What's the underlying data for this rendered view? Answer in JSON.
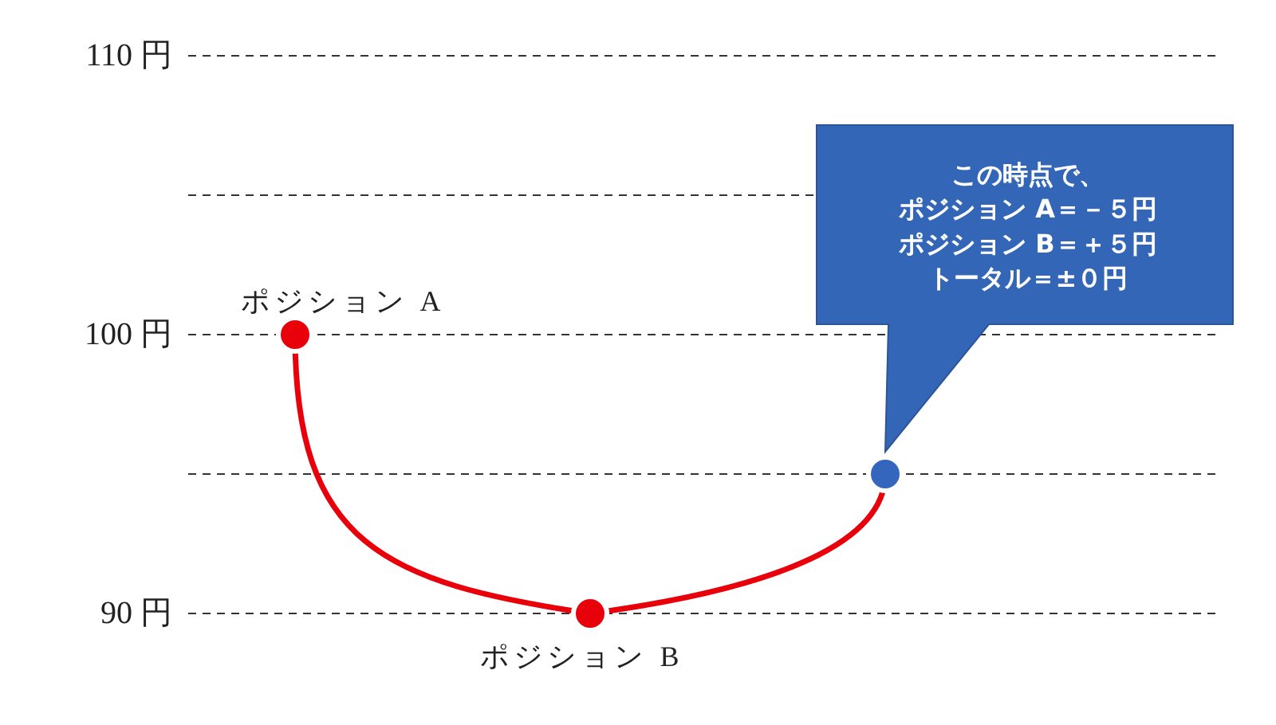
{
  "chart_data": {
    "type": "line",
    "categories": [
      null,
      null,
      null
    ],
    "series": [
      {
        "color": "#e8000b",
        "colors": [
          "#e8000b",
          "#e8000b",
          "#3566be"
        ],
        "values": [
          100,
          90,
          95
        ]
      }
    ],
    "ylim": [
      90,
      110
    ],
    "yticks": [
      {
        "value": 90,
        "label": "90 円"
      },
      {
        "value": 95,
        "label": null
      },
      {
        "value": 100,
        "label": "100 円"
      },
      {
        "value": 105,
        "label": null
      },
      {
        "value": 110,
        "label": "110 円"
      }
    ],
    "grid": "y",
    "marker": "circle",
    "line_style": "solid",
    "tick_labels": "y",
    "annotations": [
      "ポジション A",
      "ポジション B",
      "この時点で、",
      "ポジション A＝－５円",
      "ポジション B＝＋５円",
      "トータル＝±０円"
    ]
  }
}
